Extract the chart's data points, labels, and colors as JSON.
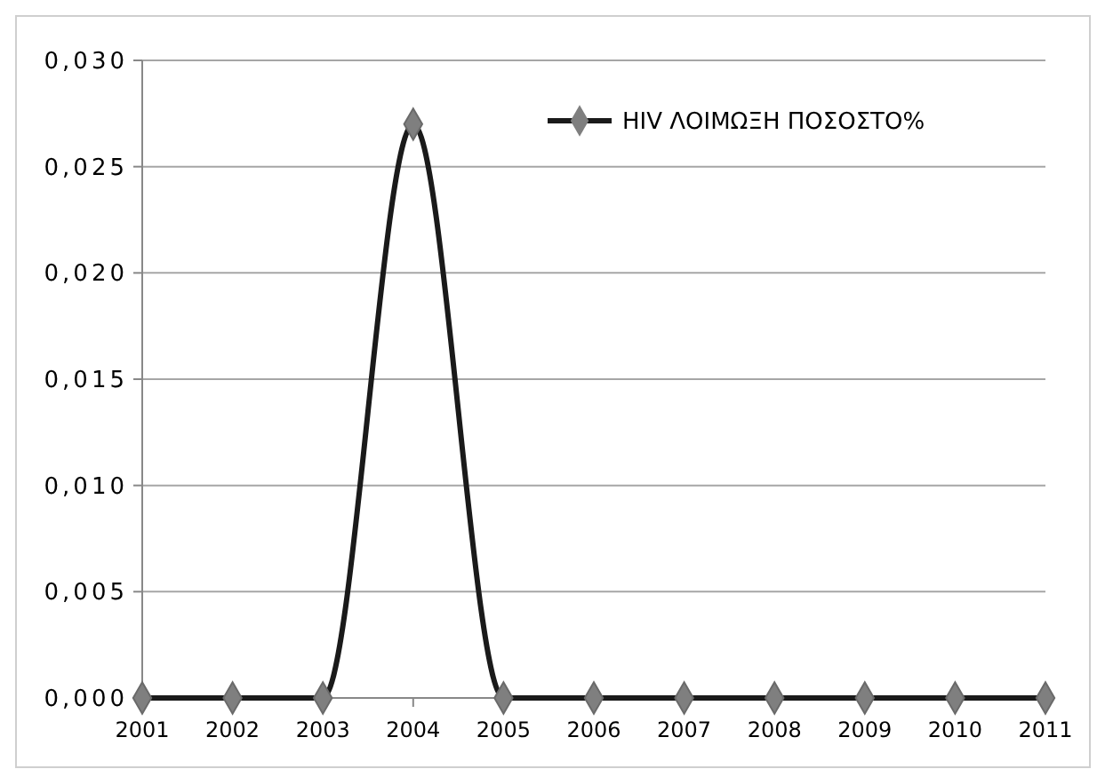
{
  "chart_data": {
    "type": "line",
    "categories": [
      "2001",
      "2002",
      "2003",
      "2004",
      "2005",
      "2006",
      "2007",
      "2008",
      "2009",
      "2010",
      "2011"
    ],
    "series": [
      {
        "name": "HIV ΛΟΙΜΩΞΗ ΠΟΣΟΣΤΟ%",
        "color": "#1a1a1a",
        "values": [
          0,
          0,
          0,
          0.027,
          0,
          0,
          0,
          0,
          0,
          0,
          0
        ]
      }
    ],
    "ylim": [
      0,
      0.03
    ],
    "yticks": [
      {
        "value": 0,
        "label": "0,000"
      },
      {
        "value": 0.005,
        "label": "0,005"
      },
      {
        "value": 0.01,
        "label": "0,010"
      },
      {
        "value": 0.015,
        "label": "0,015"
      },
      {
        "value": 0.02,
        "label": "0,020"
      },
      {
        "value": 0.025,
        "label": "0,025"
      },
      {
        "value": 0.03,
        "label": "0,030"
      }
    ],
    "grid": "y",
    "legend": "top right",
    "marker": "diamond",
    "line_style": "solid"
  }
}
